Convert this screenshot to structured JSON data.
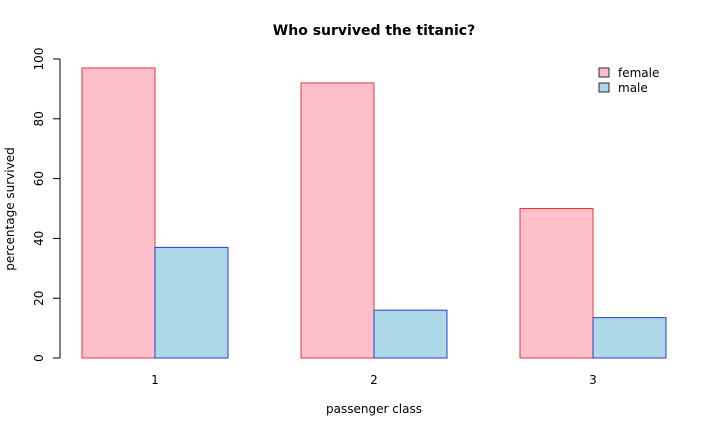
{
  "chart_data": {
    "type": "bar",
    "title": "Who survived the titanic?",
    "xlabel": "passenger class",
    "ylabel": "percentage survived",
    "categories": [
      "1",
      "2",
      "3"
    ],
    "series": [
      {
        "name": "female",
        "values": [
          97,
          92,
          50
        ],
        "fill": "#ffc0cb",
        "stroke": "#e0393e"
      },
      {
        "name": "male",
        "values": [
          37,
          16,
          13.5
        ],
        "fill": "#add8e6",
        "stroke": "#2b3bcc"
      }
    ],
    "ylim": [
      0,
      100
    ],
    "yticks": [
      "0",
      "20",
      "40",
      "60",
      "80",
      "100"
    ],
    "grid": false,
    "legend_position": "top-right"
  }
}
